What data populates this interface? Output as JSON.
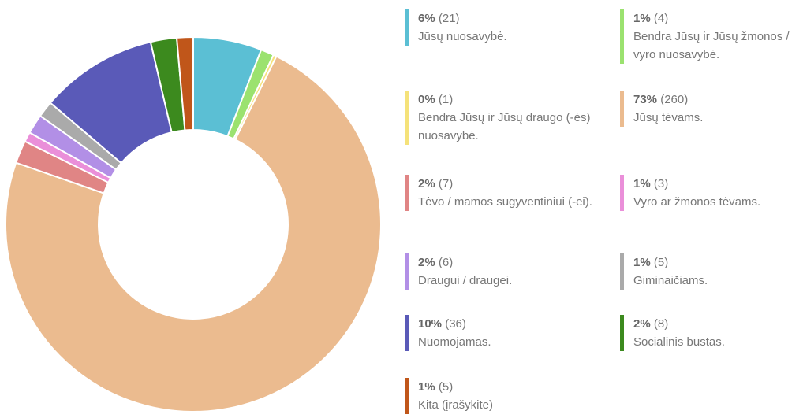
{
  "chart_data": {
    "type": "donut",
    "categories": [
      "Jūsų nuosavybė.",
      "Bendra Jūsų ir Jūsų žmonos / vyro nuosavybė.",
      "Bendra Jūsų ir Jūsų draugo (-ės) nuosavybė.",
      "Jūsų tėvams.",
      "Tėvo / mamos sugyventiniui (-ei).",
      "Vyro ar žmonos tėvams.",
      "Draugui / draugei.",
      "Giminaičiams.",
      "Nuomojamas.",
      "Socialinis būstas.",
      "Kita (įrašykite)"
    ],
    "values": [
      21,
      4,
      1,
      260,
      7,
      3,
      6,
      5,
      36,
      8,
      5
    ],
    "value_labels": [
      "(21)",
      "(4)",
      "(1)",
      "(260)",
      "(7)",
      "(3)",
      "(6)",
      "(5)",
      "(36)",
      "(8)",
      "(5)"
    ],
    "percent_labels": [
      "6%",
      "1%",
      "0%",
      "73%",
      "2%",
      "1%",
      "2%",
      "1%",
      "10%",
      "2%",
      "1%"
    ],
    "colors": [
      "#5bbfd4",
      "#9be26f",
      "#f5e27a",
      "#ebbb8f",
      "#e08585",
      "#ea8fd9",
      "#b28fe6",
      "#aaaaaa",
      "#5a5ab8",
      "#3c8a1e",
      "#c0561a"
    ]
  }
}
